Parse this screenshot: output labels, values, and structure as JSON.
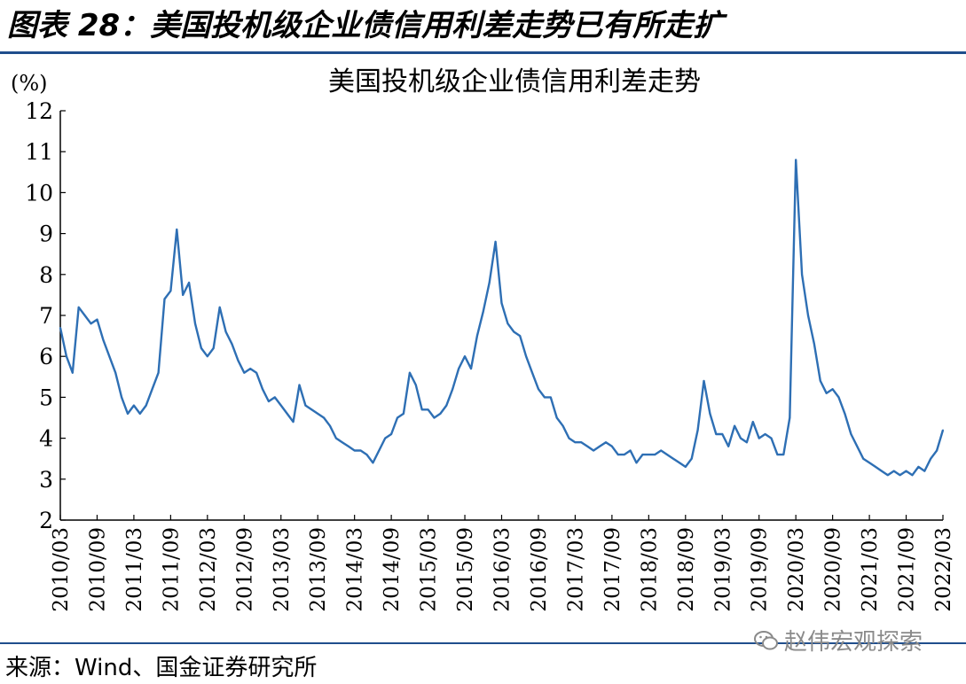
{
  "heading": "图表 28：美国投机级企业债信用利差走势已有所走扩",
  "source": "来源：Wind、国金证券研究所",
  "watermark": "赵伟宏观探索",
  "colors": {
    "series": "#2e6fb4",
    "axis": "#000000",
    "rule": "#1f4e8c"
  },
  "chart_data": {
    "type": "line",
    "title": "美国投机级企业债信用利差走势",
    "ylabel": "(%)",
    "ylim": [
      2,
      12
    ],
    "yticks": [
      2,
      3,
      4,
      5,
      6,
      7,
      8,
      9,
      10,
      11,
      12
    ],
    "xlim": [
      "2010-03",
      "2022-03"
    ],
    "xticks": [
      "2010/03",
      "2010/09",
      "2011/03",
      "2011/09",
      "2012/03",
      "2012/09",
      "2013/03",
      "2013/09",
      "2014/03",
      "2014/09",
      "2015/03",
      "2015/09",
      "2016/03",
      "2016/09",
      "2017/03",
      "2017/09",
      "2018/03",
      "2018/09",
      "2019/03",
      "2019/09",
      "2020/03",
      "2020/09",
      "2021/03",
      "2021/09",
      "2022/03"
    ],
    "grid": false,
    "series": [
      {
        "points": [
          [
            "2010-03",
            6.7
          ],
          [
            "2010-04",
            6.0
          ],
          [
            "2010-05",
            5.6
          ],
          [
            "2010-06",
            7.2
          ],
          [
            "2010-07",
            7.0
          ],
          [
            "2010-08",
            6.8
          ],
          [
            "2010-09",
            6.9
          ],
          [
            "2010-10",
            6.4
          ],
          [
            "2010-11",
            6.0
          ],
          [
            "2010-12",
            5.6
          ],
          [
            "2011-01",
            5.0
          ],
          [
            "2011-02",
            4.6
          ],
          [
            "2011-03",
            4.8
          ],
          [
            "2011-04",
            4.6
          ],
          [
            "2011-05",
            4.8
          ],
          [
            "2011-06",
            5.2
          ],
          [
            "2011-07",
            5.6
          ],
          [
            "2011-08",
            7.4
          ],
          [
            "2011-09",
            7.6
          ],
          [
            "2011-10",
            9.1
          ],
          [
            "2011-11",
            7.5
          ],
          [
            "2011-12",
            7.8
          ],
          [
            "2012-01",
            6.8
          ],
          [
            "2012-02",
            6.2
          ],
          [
            "2012-03",
            6.0
          ],
          [
            "2012-04",
            6.2
          ],
          [
            "2012-05",
            7.2
          ],
          [
            "2012-06",
            6.6
          ],
          [
            "2012-07",
            6.3
          ],
          [
            "2012-08",
            5.9
          ],
          [
            "2012-09",
            5.6
          ],
          [
            "2012-10",
            5.7
          ],
          [
            "2012-11",
            5.6
          ],
          [
            "2012-12",
            5.2
          ],
          [
            "2013-01",
            4.9
          ],
          [
            "2013-02",
            5.0
          ],
          [
            "2013-03",
            4.8
          ],
          [
            "2013-04",
            4.6
          ],
          [
            "2013-05",
            4.4
          ],
          [
            "2013-06",
            5.3
          ],
          [
            "2013-07",
            4.8
          ],
          [
            "2013-08",
            4.7
          ],
          [
            "2013-09",
            4.6
          ],
          [
            "2013-10",
            4.5
          ],
          [
            "2013-11",
            4.3
          ],
          [
            "2013-12",
            4.0
          ],
          [
            "2014-01",
            3.9
          ],
          [
            "2014-02",
            3.8
          ],
          [
            "2014-03",
            3.7
          ],
          [
            "2014-04",
            3.7
          ],
          [
            "2014-05",
            3.6
          ],
          [
            "2014-06",
            3.4
          ],
          [
            "2014-07",
            3.7
          ],
          [
            "2014-08",
            4.0
          ],
          [
            "2014-09",
            4.1
          ],
          [
            "2014-10",
            4.5
          ],
          [
            "2014-11",
            4.6
          ],
          [
            "2014-12",
            5.6
          ],
          [
            "2015-01",
            5.3
          ],
          [
            "2015-02",
            4.7
          ],
          [
            "2015-03",
            4.7
          ],
          [
            "2015-04",
            4.5
          ],
          [
            "2015-05",
            4.6
          ],
          [
            "2015-06",
            4.8
          ],
          [
            "2015-07",
            5.2
          ],
          [
            "2015-08",
            5.7
          ],
          [
            "2015-09",
            6.0
          ],
          [
            "2015-10",
            5.7
          ],
          [
            "2015-11",
            6.5
          ],
          [
            "2015-12",
            7.1
          ],
          [
            "2016-01",
            7.8
          ],
          [
            "2016-02",
            8.8
          ],
          [
            "2016-03",
            7.3
          ],
          [
            "2016-04",
            6.8
          ],
          [
            "2016-05",
            6.6
          ],
          [
            "2016-06",
            6.5
          ],
          [
            "2016-07",
            6.0
          ],
          [
            "2016-08",
            5.6
          ],
          [
            "2016-09",
            5.2
          ],
          [
            "2016-10",
            5.0
          ],
          [
            "2016-11",
            5.0
          ],
          [
            "2016-12",
            4.5
          ],
          [
            "2017-01",
            4.3
          ],
          [
            "2017-02",
            4.0
          ],
          [
            "2017-03",
            3.9
          ],
          [
            "2017-04",
            3.9
          ],
          [
            "2017-05",
            3.8
          ],
          [
            "2017-06",
            3.7
          ],
          [
            "2017-07",
            3.8
          ],
          [
            "2017-08",
            3.9
          ],
          [
            "2017-09",
            3.8
          ],
          [
            "2017-10",
            3.6
          ],
          [
            "2017-11",
            3.6
          ],
          [
            "2017-12",
            3.7
          ],
          [
            "2018-01",
            3.4
          ],
          [
            "2018-02",
            3.6
          ],
          [
            "2018-03",
            3.6
          ],
          [
            "2018-04",
            3.6
          ],
          [
            "2018-05",
            3.7
          ],
          [
            "2018-06",
            3.6
          ],
          [
            "2018-07",
            3.5
          ],
          [
            "2018-08",
            3.4
          ],
          [
            "2018-09",
            3.3
          ],
          [
            "2018-10",
            3.5
          ],
          [
            "2018-11",
            4.2
          ],
          [
            "2018-12",
            5.4
          ],
          [
            "2019-01",
            4.6
          ],
          [
            "2019-02",
            4.1
          ],
          [
            "2019-03",
            4.1
          ],
          [
            "2019-04",
            3.8
          ],
          [
            "2019-05",
            4.3
          ],
          [
            "2019-06",
            4.0
          ],
          [
            "2019-07",
            3.9
          ],
          [
            "2019-08",
            4.4
          ],
          [
            "2019-09",
            4.0
          ],
          [
            "2019-10",
            4.1
          ],
          [
            "2019-11",
            4.0
          ],
          [
            "2019-12",
            3.6
          ],
          [
            "2020-01",
            3.6
          ],
          [
            "2020-02",
            4.5
          ],
          [
            "2020-03",
            10.8
          ],
          [
            "2020-04",
            8.0
          ],
          [
            "2020-05",
            7.0
          ],
          [
            "2020-06",
            6.3
          ],
          [
            "2020-07",
            5.4
          ],
          [
            "2020-08",
            5.1
          ],
          [
            "2020-09",
            5.2
          ],
          [
            "2020-10",
            5.0
          ],
          [
            "2020-11",
            4.6
          ],
          [
            "2020-12",
            4.1
          ],
          [
            "2021-01",
            3.8
          ],
          [
            "2021-02",
            3.5
          ],
          [
            "2021-03",
            3.4
          ],
          [
            "2021-04",
            3.3
          ],
          [
            "2021-05",
            3.2
          ],
          [
            "2021-06",
            3.1
          ],
          [
            "2021-07",
            3.2
          ],
          [
            "2021-08",
            3.1
          ],
          [
            "2021-09",
            3.2
          ],
          [
            "2021-10",
            3.1
          ],
          [
            "2021-11",
            3.3
          ],
          [
            "2021-12",
            3.2
          ],
          [
            "2022-01",
            3.5
          ],
          [
            "2022-02",
            3.7
          ],
          [
            "2022-03",
            4.2
          ]
        ]
      }
    ]
  }
}
